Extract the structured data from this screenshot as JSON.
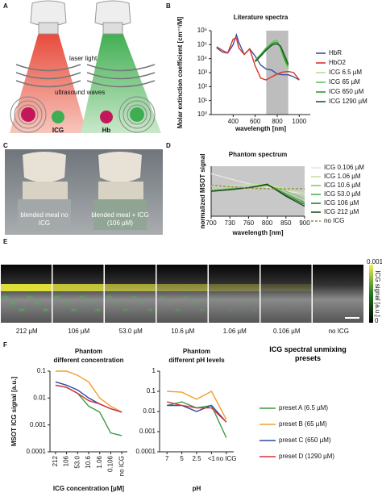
{
  "panel_letters": [
    "A",
    "B",
    "C",
    "D",
    "E",
    "F"
  ],
  "illustration": {
    "laser_label": "laser light",
    "ultrasound_label": "ultrasound waves",
    "left_label": "ICG",
    "right_label": "Hb"
  },
  "photo": {
    "left_label": "blended meal no ICG",
    "right_label": "blended meal + ICG (106 µM)"
  },
  "image_strip": {
    "labels": [
      "212 µM",
      "106 µM",
      "53.0 µM",
      "10.6 µM",
      "1.06 µM",
      "0.106 µM",
      "no ICG"
    ],
    "colorbar_max": "0.001",
    "colorbar_min": "0",
    "colorbar_label": "ICG signal [a.u.]"
  },
  "chart_data": [
    {
      "type": "line",
      "title": "Literature spectra",
      "x_label": "wavelength [nm]",
      "y_label": "Molar extinction coefficient [cm⁻¹/M]",
      "xlim": [
        200,
        1100
      ],
      "xticks": [
        400,
        600,
        800,
        1000
      ],
      "ylim": [
        1,
        1000000
      ],
      "log_y": true,
      "yticks": [
        {
          "value": 1,
          "label": "10⁰"
        },
        {
          "value": 10,
          "label": "10¹"
        },
        {
          "value": 100,
          "label": "10²"
        },
        {
          "value": 1000,
          "label": "10³"
        },
        {
          "value": 10000,
          "label": "10⁴"
        },
        {
          "value": 100000,
          "label": "10⁵"
        },
        {
          "value": 1000000,
          "label": "10⁶"
        }
      ],
      "shaded_region": [
        700,
        900
      ],
      "shade_color": "#bdbdbd",
      "series": [
        {
          "name": "HbR",
          "color": "#3a4fa0",
          "x": [
            250,
            300,
            350,
            400,
            430,
            450,
            500,
            550,
            600,
            650,
            700,
            750,
            800,
            850,
            900,
            950,
            1000
          ],
          "values": [
            60000,
            30000,
            25000,
            100000,
            500000,
            150000,
            20000,
            50000,
            15000,
            3500,
            1800,
            1500,
            800,
            700,
            700,
            500,
            300
          ]
        },
        {
          "name": "HbO2",
          "color": "#d9362b",
          "x": [
            250,
            300,
            350,
            400,
            430,
            450,
            500,
            550,
            600,
            650,
            700,
            750,
            800,
            850,
            900,
            950,
            1000
          ],
          "values": [
            70000,
            40000,
            25000,
            250000,
            300000,
            60000,
            20000,
            50000,
            3000,
            400,
            300,
            500,
            800,
            1100,
            1200,
            1000,
            300
          ]
        },
        {
          "name": "ICG 6.5 µM",
          "color": "#b5dca0",
          "x": [
            600,
            650,
            700,
            750,
            780,
            800,
            830,
            850,
            880,
            900
          ],
          "values": [
            8000,
            20000,
            60000,
            150000,
            250000,
            200000,
            40000,
            10000,
            3000,
            1500
          ]
        },
        {
          "name": "ICG 65 µM",
          "color": "#6dbf5a",
          "x": [
            600,
            650,
            700,
            750,
            780,
            800,
            830,
            850,
            880,
            900
          ],
          "values": [
            8000,
            20000,
            60000,
            140000,
            220000,
            190000,
            50000,
            15000,
            4000,
            2000
          ]
        },
        {
          "name": "ICG 650 µM",
          "color": "#2f9a3c",
          "x": [
            600,
            650,
            700,
            750,
            780,
            800,
            830,
            850,
            880,
            900
          ],
          "values": [
            7000,
            18000,
            50000,
            110000,
            150000,
            140000,
            70000,
            25000,
            6000,
            3000
          ]
        },
        {
          "name": "ICG 1290 µM",
          "color": "#1b5e20",
          "x": [
            600,
            650,
            700,
            750,
            780,
            800,
            830,
            850,
            880,
            900
          ],
          "values": [
            6000,
            15000,
            40000,
            90000,
            110000,
            110000,
            80000,
            35000,
            10000,
            4000
          ]
        }
      ]
    },
    {
      "type": "line",
      "title": "Phantom spectrum",
      "x_label": "wavelength [nm]",
      "y_label": "normalized MSOT signal",
      "categories": [
        "700",
        "730",
        "760",
        "800",
        "850",
        "900"
      ],
      "ylim": [
        0,
        1
      ],
      "background": "#c8c8c8",
      "series": [
        {
          "name": "ICG 0.106 µM",
          "color": "#e6e6e6",
          "values": [
            0.85,
            0.75,
            0.65,
            0.58,
            0.5,
            0.45
          ]
        },
        {
          "name": "ICG 1.06 µM",
          "color": "#c5e0a5",
          "values": [
            0.6,
            0.62,
            0.63,
            0.64,
            0.55,
            0.45
          ]
        },
        {
          "name": "ICG 10.6 µM",
          "color": "#8cc96a",
          "values": [
            0.52,
            0.55,
            0.57,
            0.62,
            0.5,
            0.35
          ]
        },
        {
          "name": "ICG 53.0 µM",
          "color": "#4caf50",
          "values": [
            0.5,
            0.54,
            0.57,
            0.63,
            0.45,
            0.28
          ]
        },
        {
          "name": "ICG 106 µM",
          "color": "#2e7d32",
          "values": [
            0.5,
            0.53,
            0.57,
            0.63,
            0.42,
            0.24
          ]
        },
        {
          "name": "ICG 212 µM",
          "color": "#1b4d1f",
          "values": [
            0.5,
            0.53,
            0.57,
            0.64,
            0.4,
            0.2
          ]
        },
        {
          "name": "no ICG",
          "color": "#9a8f2e",
          "dashed": true,
          "values": [
            0.62,
            0.59,
            0.56,
            0.55,
            0.55,
            0.55
          ]
        }
      ]
    },
    {
      "type": "line",
      "title": "Phantom",
      "subtitle": "different concentration",
      "x_label": "ICG concentration [µM]",
      "y_label": "MSOT ICG signal [a.u.]",
      "categories": [
        "212",
        "106",
        "53.0",
        "10.6",
        "1.06",
        "0.106",
        "no ICG"
      ],
      "log_y": true,
      "ylim": [
        0.0001,
        0.1
      ],
      "yticks": [
        0.0001,
        0.001,
        0.01,
        0.1
      ],
      "series": [
        {
          "color": "#3c9a45",
          "values": [
            0.03,
            0.025,
            0.015,
            0.005,
            0.003,
            0.0005,
            0.0004
          ]
        },
        {
          "color": "#f0a030",
          "values": [
            0.1,
            0.1,
            0.07,
            0.04,
            0.01,
            0.005,
            0.003
          ]
        },
        {
          "color": "#2b4aa0",
          "values": [
            0.04,
            0.03,
            0.02,
            0.01,
            0.006,
            0.004,
            0.003
          ]
        },
        {
          "color": "#d8323c",
          "values": [
            0.03,
            0.025,
            0.015,
            0.008,
            0.006,
            0.004,
            0.003
          ]
        }
      ]
    },
    {
      "type": "line",
      "title": "Phantom",
      "subtitle": "different pH levels",
      "x_label": "pH",
      "categories": [
        "7",
        "5",
        "2.5",
        "<1",
        "no ICG"
      ],
      "log_y": true,
      "ylim": [
        0.0001,
        1
      ],
      "yticks": [
        0.0001,
        0.001,
        0.01,
        0.1,
        1
      ],
      "legend_title": "ICG spectral unmixing presets",
      "series": [
        {
          "name": "preset A (6.5 µM)",
          "color": "#3c9a45",
          "values": [
            0.02,
            0.03,
            0.015,
            0.02,
            0.0005
          ]
        },
        {
          "name": "preset B (65 µM)",
          "color": "#f0a030",
          "values": [
            0.1,
            0.09,
            0.04,
            0.1,
            0.004
          ]
        },
        {
          "name": "preset C (650 µM)",
          "color": "#2b4aa0",
          "values": [
            0.02,
            0.02,
            0.01,
            0.02,
            0.003
          ]
        },
        {
          "name": "preset D (1290 µM)",
          "color": "#d8323c",
          "values": [
            0.03,
            0.02,
            0.015,
            0.015,
            0.003
          ]
        }
      ]
    }
  ]
}
